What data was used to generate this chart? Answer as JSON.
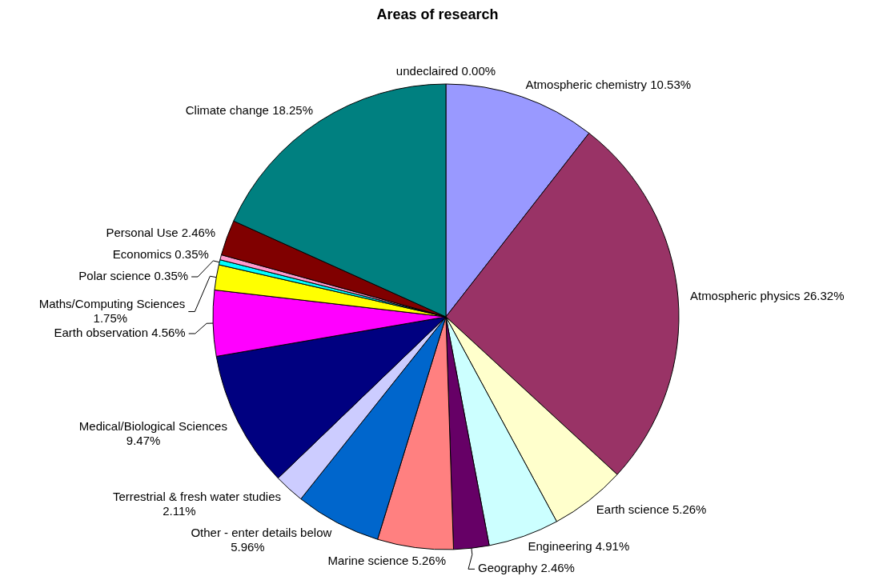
{
  "chart_data": {
    "type": "pie",
    "title": "Areas of research",
    "categories": [
      "undeclaired",
      "Atmospheric chemistry",
      "Atmospheric physics",
      "Earth science",
      "Engineering",
      "Geography",
      "Marine science",
      "Other - enter details below",
      "Terrestrial & fresh water studies",
      "Medical/Biological Sciences",
      "Earth observation",
      "Maths/Computing Sciences",
      "Polar science",
      "Economics",
      "Personal Use",
      "Climate change"
    ],
    "values": [
      0.0,
      10.53,
      26.32,
      5.26,
      4.91,
      2.46,
      5.26,
      5.96,
      2.11,
      9.47,
      4.56,
      1.75,
      0.35,
      0.35,
      2.46,
      18.25
    ],
    "value_labels": [
      "0.00%",
      "10.53%",
      "26.32%",
      "5.26%",
      "4.91%",
      "2.46%",
      "5.26%",
      "5.96%",
      "2.11%",
      "9.47%",
      "4.56%",
      "1.75%",
      "0.35%",
      "0.35%",
      "2.46%",
      "18.25%"
    ],
    "colors": [
      "#800080",
      "#9999ff",
      "#993366",
      "#ffffcc",
      "#ccffff",
      "#660066",
      "#ff8080",
      "#0066cc",
      "#ccccff",
      "#000080",
      "#ff00ff",
      "#ffff00",
      "#00ffff",
      "#ff99cc",
      "#800000",
      "#008080"
    ]
  }
}
